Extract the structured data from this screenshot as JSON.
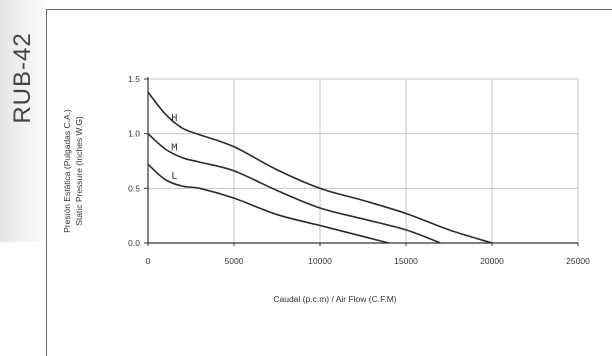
{
  "model": "RUB-42",
  "chart_data": {
    "type": "line",
    "xlabel": "Caudal (p.c.m) / Air Flow (C.F.M)",
    "ylabel_lines": [
      "Presión Estática (Pulgadas C.A.)",
      "Static Pressure (Inches W.G)"
    ],
    "xlim": [
      0,
      25000
    ],
    "ylim": [
      0,
      1.5
    ],
    "x_ticks": [
      "0",
      "5000",
      "10000",
      "15000",
      "20000",
      "25000"
    ],
    "y_ticks": [
      "0.0",
      "0.5",
      "1.0",
      "1.5"
    ],
    "grid": true,
    "series": [
      {
        "name": "H",
        "x": [
          0,
          1000,
          2000,
          3000,
          5000,
          7500,
          10000,
          12500,
          15000,
          17500,
          20000
        ],
        "y": [
          1.38,
          1.18,
          1.05,
          0.99,
          0.88,
          0.67,
          0.5,
          0.39,
          0.27,
          0.12,
          0.0
        ]
      },
      {
        "name": "M",
        "x": [
          0,
          1000,
          2000,
          3000,
          5000,
          7500,
          10000,
          12500,
          15000,
          17000
        ],
        "y": [
          1.0,
          0.86,
          0.78,
          0.74,
          0.66,
          0.48,
          0.32,
          0.22,
          0.12,
          0.0
        ]
      },
      {
        "name": "L",
        "x": [
          0,
          1000,
          2000,
          3000,
          5000,
          7500,
          10000,
          12500,
          14000
        ],
        "y": [
          0.72,
          0.58,
          0.52,
          0.5,
          0.41,
          0.26,
          0.16,
          0.06,
          0.0
        ]
      }
    ]
  }
}
